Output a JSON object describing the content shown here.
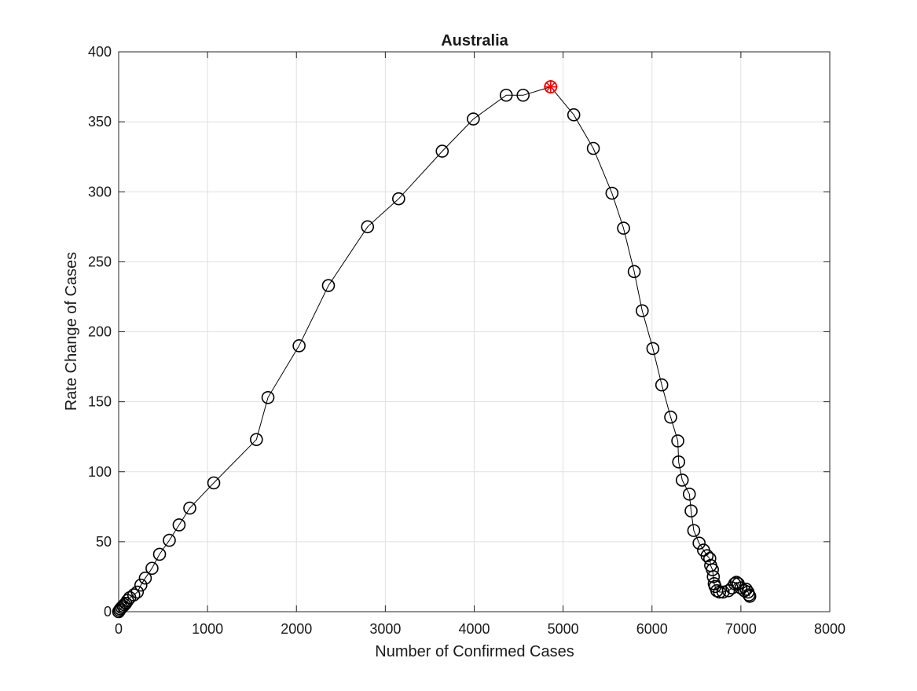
{
  "chart_data": {
    "type": "scatter",
    "title": "Australia",
    "xlabel": "Number of Confirmed Cases",
    "ylabel": "Rate Change of Cases",
    "xlim": [
      0,
      8000
    ],
    "ylim": [
      0,
      400
    ],
    "xticks": [
      0,
      1000,
      2000,
      3000,
      4000,
      5000,
      6000,
      7000,
      8000
    ],
    "yticks": [
      0,
      50,
      100,
      150,
      200,
      250,
      300,
      350,
      400
    ],
    "grid": true,
    "colors": {
      "series": "#000000",
      "highlight": "#ff0000",
      "grid": "#e0e0e0"
    },
    "series": [
      {
        "marker": "circle",
        "line": true,
        "points": [
          [
            0,
            0
          ],
          [
            10,
            1
          ],
          [
            20,
            2
          ],
          [
            35,
            3
          ],
          [
            50,
            4
          ],
          [
            65,
            5
          ],
          [
            80,
            6
          ],
          [
            100,
            8
          ],
          [
            125,
            10
          ],
          [
            170,
            12
          ],
          [
            210,
            14
          ],
          [
            250,
            19
          ],
          [
            300,
            24
          ],
          [
            375,
            31
          ],
          [
            460,
            41
          ],
          [
            570,
            51
          ],
          [
            680,
            62
          ],
          [
            800,
            74
          ],
          [
            1070,
            92
          ],
          [
            1550,
            123
          ],
          [
            1680,
            153
          ],
          [
            2030,
            190
          ],
          [
            2360,
            233
          ],
          [
            2800,
            275
          ],
          [
            3150,
            295
          ],
          [
            3640,
            329
          ],
          [
            3990,
            352
          ],
          [
            4360,
            369
          ],
          [
            4550,
            369
          ],
          [
            4860,
            375
          ],
          [
            5120,
            355
          ],
          [
            5340,
            331
          ],
          [
            5550,
            299
          ],
          [
            5680,
            274
          ],
          [
            5800,
            243
          ],
          [
            5890,
            215
          ],
          [
            6010,
            188
          ],
          [
            6110,
            162
          ],
          [
            6210,
            139
          ],
          [
            6290,
            122
          ],
          [
            6300,
            107
          ],
          [
            6340,
            94
          ],
          [
            6420,
            84
          ],
          [
            6440,
            72
          ],
          [
            6470,
            58
          ],
          [
            6530,
            49
          ],
          [
            6580,
            44
          ],
          [
            6620,
            40
          ],
          [
            6650,
            38
          ],
          [
            6660,
            33
          ],
          [
            6680,
            30
          ],
          [
            6690,
            25
          ],
          [
            6700,
            20
          ],
          [
            6710,
            18
          ],
          [
            6730,
            15
          ],
          [
            6760,
            14
          ],
          [
            6800,
            14
          ],
          [
            6860,
            15
          ],
          [
            6900,
            17
          ],
          [
            6930,
            20
          ],
          [
            6950,
            21
          ],
          [
            6970,
            20
          ],
          [
            7000,
            17
          ],
          [
            7040,
            15
          ],
          [
            7060,
            16
          ],
          [
            7080,
            14
          ],
          [
            7090,
            12
          ],
          [
            7100,
            11
          ]
        ]
      }
    ],
    "highlight": {
      "x": 4860,
      "y": 375,
      "marker": "star-circle"
    }
  }
}
